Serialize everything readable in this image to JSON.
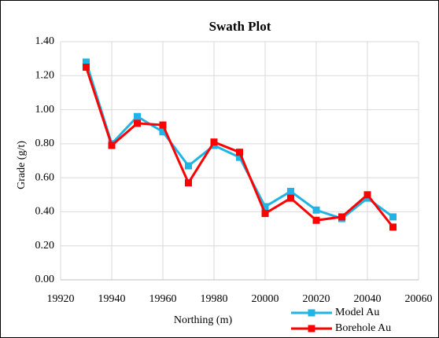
{
  "chart_data": {
    "type": "line",
    "title": "Swath Plot",
    "x_label": "Northing (m)",
    "y_label": "Grade (g/t)",
    "x": [
      19930,
      19940,
      19950,
      19960,
      19970,
      19980,
      19990,
      20000,
      20010,
      20020,
      20030,
      20040,
      20050
    ],
    "series": [
      {
        "name": "Model Au",
        "color": "#1fb4e6",
        "values": [
          1.28,
          0.8,
          0.96,
          0.87,
          0.67,
          0.79,
          0.72,
          0.43,
          0.52,
          0.41,
          0.36,
          0.48,
          0.37
        ]
      },
      {
        "name": "Borehole Au",
        "color": "#ff0000",
        "values": [
          1.25,
          0.79,
          0.92,
          0.91,
          0.57,
          0.81,
          0.75,
          0.39,
          0.48,
          0.35,
          0.37,
          0.5,
          0.31
        ]
      }
    ],
    "xlim": [
      19920,
      20060
    ],
    "xticks": [
      19920,
      19940,
      19960,
      19980,
      20000,
      20020,
      20040,
      20060
    ],
    "ylim": [
      0,
      1.4
    ],
    "yticks": [
      {
        "value": 0,
        "label": "0.00"
      },
      {
        "value": 0.2,
        "label": "0.20"
      },
      {
        "value": 0.4,
        "label": "0.40"
      },
      {
        "value": 0.6,
        "label": "0.60"
      },
      {
        "value": 0.8,
        "label": "0.80"
      },
      {
        "value": 1.0,
        "label": "1.00"
      },
      {
        "value": 1.2,
        "label": "1.20"
      },
      {
        "value": 1.4,
        "label": "1.40"
      }
    ],
    "grid": true,
    "legend": "bottom-right"
  }
}
